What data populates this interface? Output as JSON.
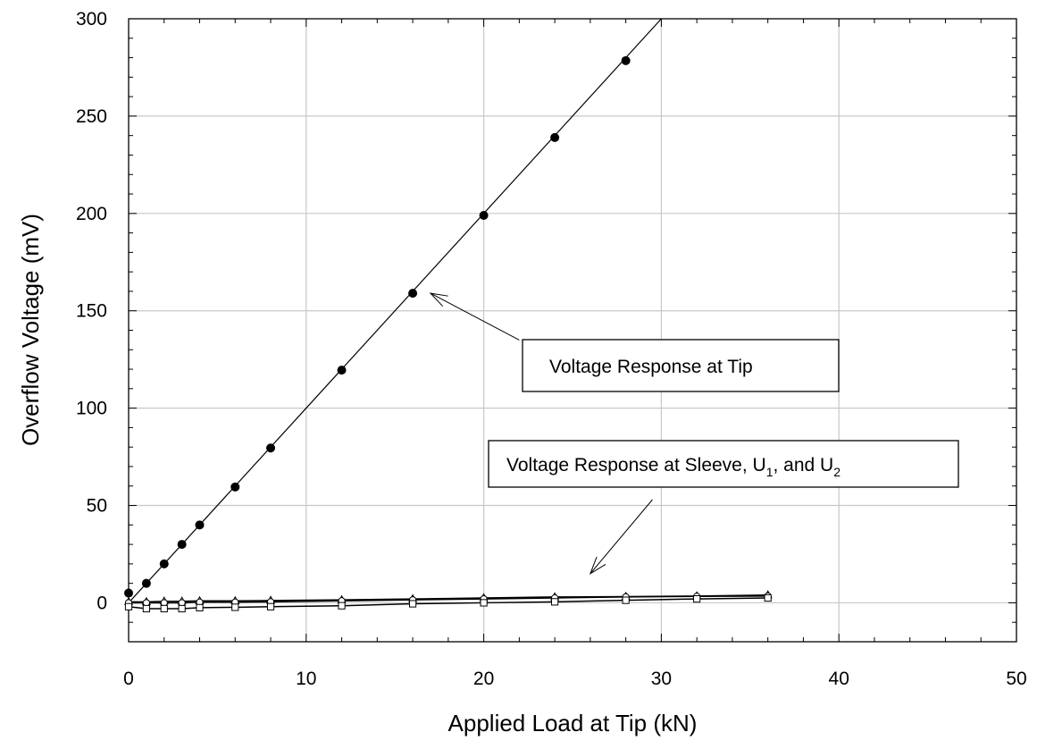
{
  "chart_data": {
    "type": "scatter",
    "title": "",
    "xlabel": "Applied Load at Tip (kN)",
    "ylabel": "Overflow Voltage  (mV)",
    "xlim": [
      0,
      50
    ],
    "ylim": [
      -20,
      300
    ],
    "x_ticks": [
      0,
      10,
      20,
      30,
      40,
      50
    ],
    "y_ticks": [
      0,
      50,
      100,
      150,
      200,
      250,
      300
    ],
    "grid": true,
    "fit_line": {
      "x": [
        0,
        30
      ],
      "y": [
        0,
        300
      ]
    },
    "series": [
      {
        "marker": "filled-circle",
        "connect": false,
        "points": [
          [
            0,
            5
          ],
          [
            1,
            10
          ],
          [
            2,
            20
          ],
          [
            3,
            30
          ],
          [
            4,
            40
          ],
          [
            6,
            59.5
          ],
          [
            8,
            79.5
          ],
          [
            12,
            119.5
          ],
          [
            16,
            159
          ],
          [
            20,
            199
          ],
          [
            24,
            239
          ],
          [
            28,
            278.5
          ]
        ]
      },
      {
        "marker": "open-triangle",
        "connect": true,
        "points": [
          [
            0,
            0.5
          ],
          [
            1,
            0.5
          ],
          [
            2,
            0.8
          ],
          [
            3,
            0.8
          ],
          [
            4,
            1
          ],
          [
            6,
            1
          ],
          [
            8,
            1.2
          ],
          [
            12,
            1.5
          ],
          [
            16,
            2
          ],
          [
            20,
            2.5
          ],
          [
            24,
            3
          ],
          [
            28,
            3.2
          ],
          [
            32,
            3.5
          ],
          [
            36,
            4
          ]
        ]
      },
      {
        "marker": "open-circle",
        "connect": true,
        "points": [
          [
            0,
            0
          ],
          [
            1,
            0
          ],
          [
            2,
            0
          ],
          [
            3,
            0
          ],
          [
            4,
            0.3
          ],
          [
            6,
            0.3
          ],
          [
            8,
            0.5
          ],
          [
            12,
            1
          ],
          [
            16,
            1.5
          ],
          [
            20,
            2
          ],
          [
            24,
            2.5
          ],
          [
            28,
            3
          ],
          [
            32,
            3.3
          ],
          [
            36,
            3.5
          ]
        ]
      },
      {
        "marker": "open-square",
        "connect": true,
        "points": [
          [
            0,
            -2
          ],
          [
            1,
            -3
          ],
          [
            2,
            -3
          ],
          [
            3,
            -3
          ],
          [
            4,
            -2.5
          ],
          [
            6,
            -2.3
          ],
          [
            8,
            -2
          ],
          [
            12,
            -1.5
          ],
          [
            16,
            -0.5
          ],
          [
            20,
            0
          ],
          [
            24,
            0.5
          ],
          [
            28,
            1.3
          ],
          [
            32,
            2
          ],
          [
            36,
            2.5
          ]
        ]
      }
    ],
    "annotations": [
      {
        "text": "Voltage Response at Tip",
        "arrow_to": [
          17,
          159
        ],
        "arrow_from": [
          22,
          135
        ]
      },
      {
        "text_parts": [
          "Voltage Response at Sleeve, U",
          "1",
          ", and U",
          "2"
        ],
        "arrow_to": [
          26,
          15
        ],
        "arrow_from": [
          29.5,
          53
        ]
      }
    ]
  }
}
